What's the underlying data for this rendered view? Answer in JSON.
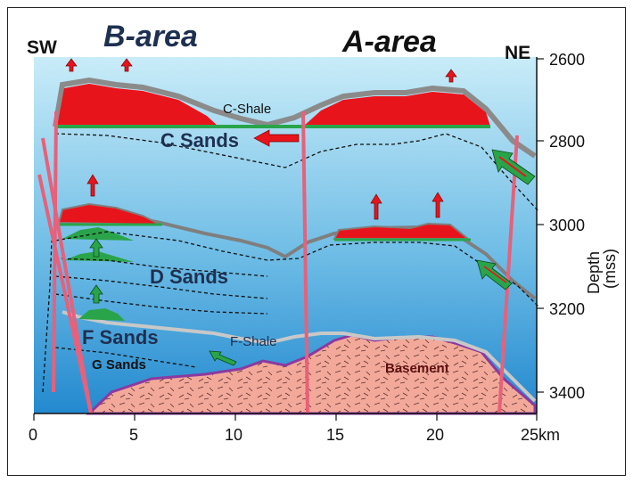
{
  "labels": {
    "sw": "SW",
    "ne": "NE",
    "b_area": "B-area",
    "a_area": "A-area",
    "c_shale": "C-Shale",
    "c_sands": "C Sands",
    "d_sands": "D Sands",
    "f_sands": "F Sands",
    "f_shale": "F-Shale",
    "g_sands": "G Sands",
    "basement": "Basement"
  },
  "depth_axis": {
    "title": "Depth",
    "unit": "(mss)",
    "ticks": [
      "2600",
      "2800",
      "3000",
      "3200",
      "3400"
    ]
  },
  "distance_axis": {
    "ticks": [
      "0",
      "5",
      "10",
      "15",
      "20",
      "25km"
    ]
  },
  "colors": {
    "sky_top": "#b8e2f4",
    "sky_bottom": "#2a8fd3",
    "gas": "#e8141c",
    "oil": "#2aa44a",
    "shale": "#888888",
    "basement": "#f3a99a",
    "basement_edge": "#8a3aa0",
    "fault": "#e8607a",
    "title_color": "#1e3050"
  }
}
